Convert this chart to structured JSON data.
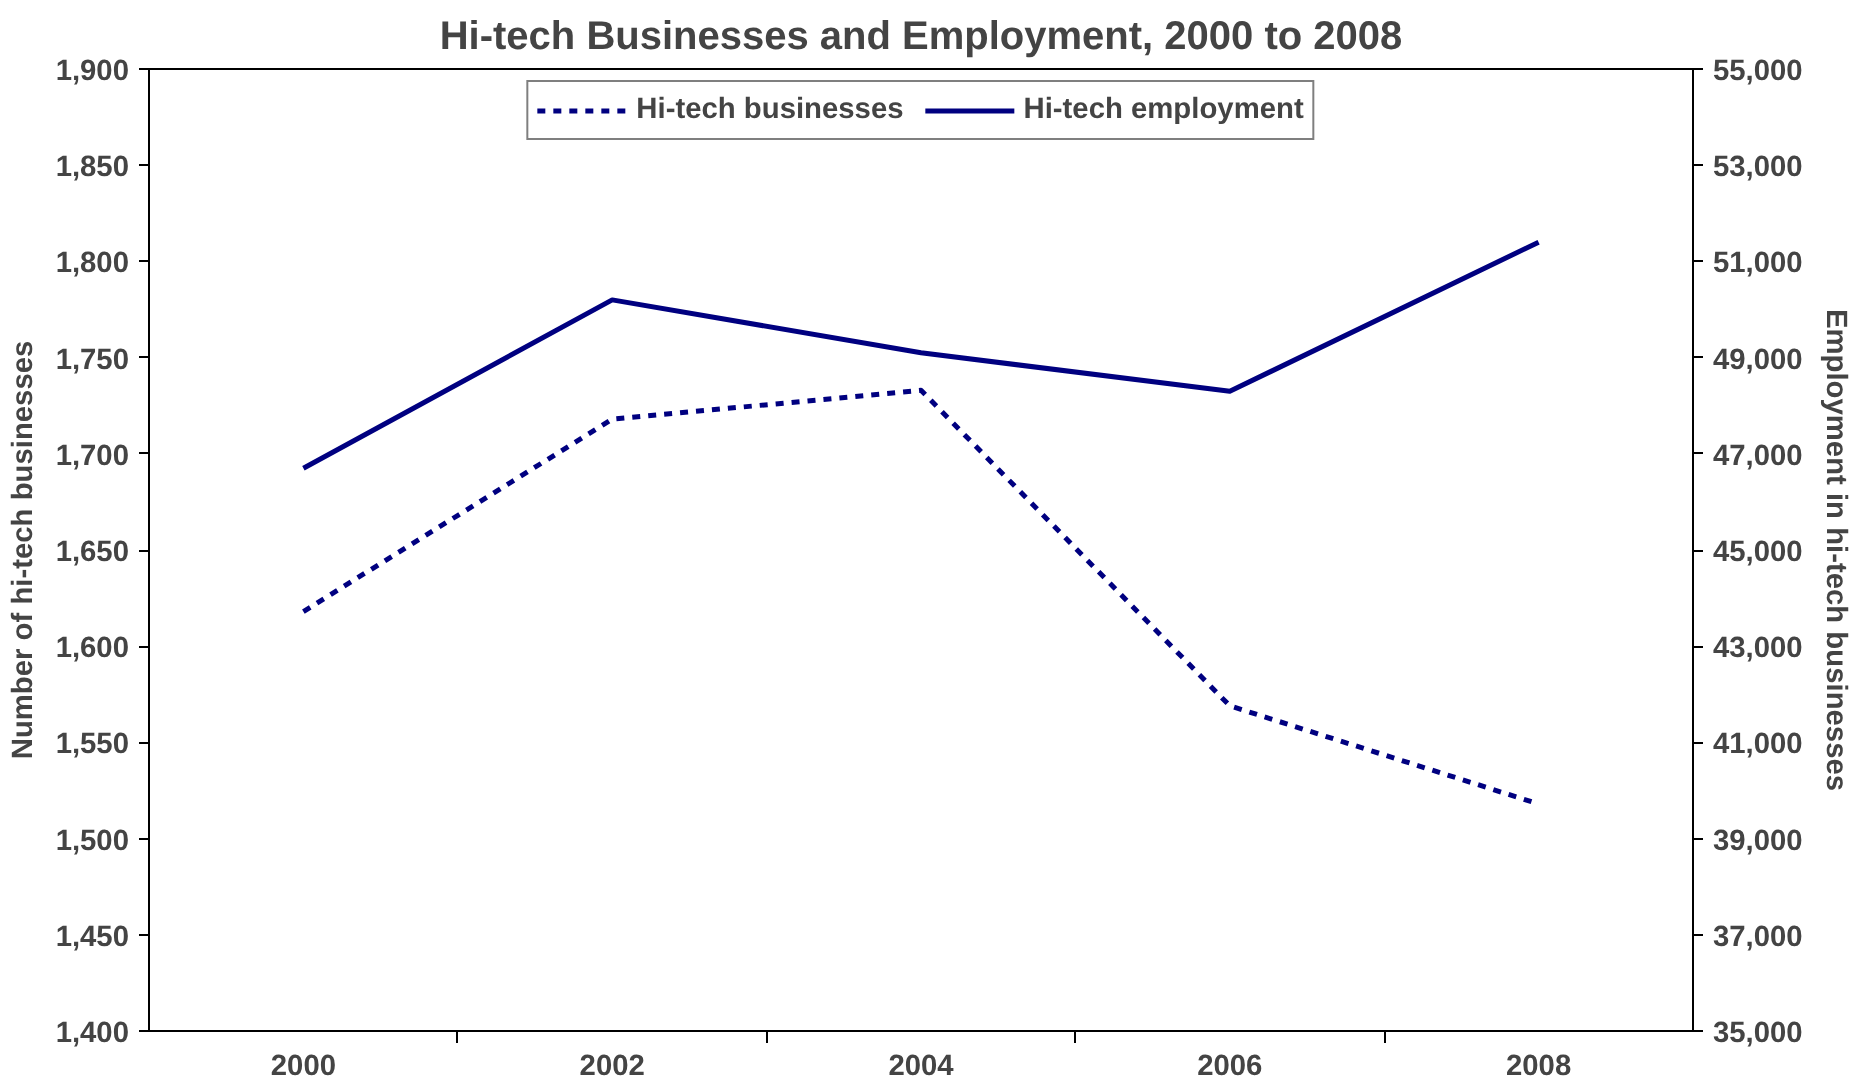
{
  "chart_data": {
    "type": "line",
    "title": "Hi-tech Businesses and Employment, 2000 to 2008",
    "ylabel": "Number of hi-tech businesses",
    "y2label": "Employment in hi-tech businesses",
    "categories": [
      "2000",
      "2002",
      "2004",
      "2006",
      "2008"
    ],
    "series": [
      {
        "name": "Hi-tech businesses",
        "color": "#000080",
        "line_style": "dashed",
        "values": [
          1618,
          1718,
          1733,
          1569,
          1518
        ]
      },
      {
        "name": "Hi-tech employment",
        "color": "#000080",
        "line_style": "solid",
        "axis": "y2",
        "values": [
          46700,
          50200,
          49100,
          48300,
          51400
        ]
      }
    ],
    "ylim": [
      1400,
      1900
    ],
    "yticks": [
      {
        "value": 1400,
        "label": "1,400"
      },
      {
        "value": 1450,
        "label": "1,450"
      },
      {
        "value": 1500,
        "label": "1,500"
      },
      {
        "value": 1550,
        "label": "1,550"
      },
      {
        "value": 1600,
        "label": "1,600"
      },
      {
        "value": 1650,
        "label": "1,650"
      },
      {
        "value": 1700,
        "label": "1,700"
      },
      {
        "value": 1750,
        "label": "1,750"
      },
      {
        "value": 1800,
        "label": "1,800"
      },
      {
        "value": 1850,
        "label": "1,850"
      },
      {
        "value": 1900,
        "label": "1,900"
      }
    ],
    "y2lim": [
      35000,
      55000
    ],
    "y2ticks": [
      {
        "value": 35000,
        "label": "35,000"
      },
      {
        "value": 37000,
        "label": "37,000"
      },
      {
        "value": 39000,
        "label": "39,000"
      },
      {
        "value": 41000,
        "label": "41,000"
      },
      {
        "value": 43000,
        "label": "43,000"
      },
      {
        "value": 45000,
        "label": "45,000"
      },
      {
        "value": 47000,
        "label": "47,000"
      },
      {
        "value": 49000,
        "label": "49,000"
      },
      {
        "value": 51000,
        "label": "51,000"
      },
      {
        "value": 53000,
        "label": "53,000"
      },
      {
        "value": 55000,
        "label": "55,000"
      }
    ],
    "legend": "top",
    "grid": false,
    "marker": "none"
  }
}
